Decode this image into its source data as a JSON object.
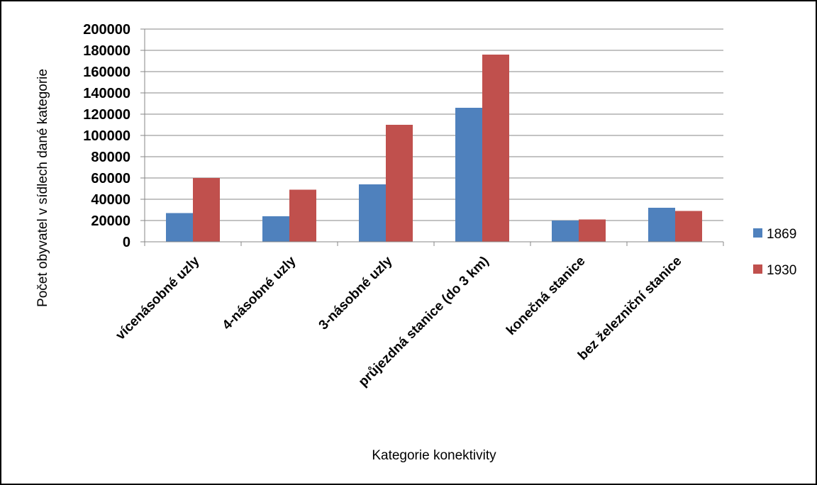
{
  "chart_data": {
    "type": "bar",
    "title": "",
    "xlabel": "Kategorie konektivity",
    "ylabel": "Počet obyvatel v sídlech dané kategorie",
    "categories": [
      "vícenásobné uzly",
      "4-násobné uzly",
      "3-násobné uzly",
      "průjezdná stanice (do 3 km)",
      "konečná stanice",
      "bez železniční stanice"
    ],
    "series": [
      {
        "name": "1869",
        "color": "#4F81BD",
        "values": [
          27000,
          24000,
          54000,
          126000,
          20000,
          32000
        ]
      },
      {
        "name": "1930",
        "color": "#C0504D",
        "values": [
          60000,
          49000,
          110000,
          176000,
          21000,
          29000
        ]
      }
    ],
    "ylim": [
      0,
      200000
    ],
    "yticks": [
      "0",
      "20000",
      "40000",
      "60000",
      "80000",
      "100000",
      "120000",
      "140000",
      "160000",
      "180000",
      "200000"
    ],
    "grid": true,
    "legend": "right"
  }
}
